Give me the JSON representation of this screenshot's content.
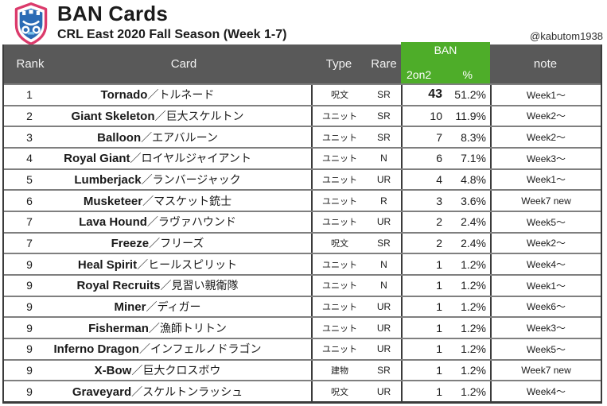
{
  "header": {
    "title": "BAN Cards",
    "subtitle": "CRL East 2020 Fall Season (Week 1-7)",
    "credit": "@kabutom1938"
  },
  "colors": {
    "header_bg": "#595959",
    "header_text": "#f2f2f2",
    "ban_green": "#4ead29",
    "border_gray": "#7f7f7f",
    "border_dark": "#3b3b3b",
    "logo_pink": "#db3a6b",
    "logo_blue": "#2b6bb5",
    "logo_light_blue": "#7ec3ec"
  },
  "table": {
    "separator": "／",
    "columns": {
      "rank": "Rank",
      "card": "Card",
      "type": "Type",
      "rare": "Rare",
      "ban": "BAN",
      "ban_sub_left": "2on2",
      "ban_sub_right": "%",
      "note": "note"
    },
    "rows": [
      {
        "rank": "1",
        "card_en": "Tornado",
        "card_jp": "トルネード",
        "type": "呪文",
        "rare": "SR",
        "count": "43",
        "pct": "51.2%",
        "note": "Week1～",
        "emphasis": true
      },
      {
        "rank": "2",
        "card_en": "Giant Skeleton",
        "card_jp": "巨大スケルトン",
        "type": "ユニット",
        "rare": "SR",
        "count": "10",
        "pct": "11.9%",
        "note": "Week2～",
        "emphasis": false
      },
      {
        "rank": "3",
        "card_en": "Balloon",
        "card_jp": "エアバルーン",
        "type": "ユニット",
        "rare": "SR",
        "count": "7",
        "pct": "8.3%",
        "note": "Week2～",
        "emphasis": false
      },
      {
        "rank": "4",
        "card_en": "Royal Giant",
        "card_jp": "ロイヤルジャイアント",
        "type": "ユニット",
        "rare": "N",
        "count": "6",
        "pct": "7.1%",
        "note": "Week3～",
        "emphasis": false
      },
      {
        "rank": "5",
        "card_en": "Lumberjack",
        "card_jp": "ランバージャック",
        "type": "ユニット",
        "rare": "UR",
        "count": "4",
        "pct": "4.8%",
        "note": "Week1～",
        "emphasis": false
      },
      {
        "rank": "6",
        "card_en": "Musketeer",
        "card_jp": "マスケット銃士",
        "type": "ユニット",
        "rare": "R",
        "count": "3",
        "pct": "3.6%",
        "note": "Week7 new",
        "emphasis": false
      },
      {
        "rank": "7",
        "card_en": "Lava Hound",
        "card_jp": "ラヴァハウンド",
        "type": "ユニット",
        "rare": "UR",
        "count": "2",
        "pct": "2.4%",
        "note": "Week5～",
        "emphasis": false
      },
      {
        "rank": "7",
        "card_en": "Freeze",
        "card_jp": "フリーズ",
        "type": "呪文",
        "rare": "SR",
        "count": "2",
        "pct": "2.4%",
        "note": "Week2～",
        "emphasis": false
      },
      {
        "rank": "9",
        "card_en": "Heal Spirit",
        "card_jp": "ヒールスピリット",
        "type": "ユニット",
        "rare": "N",
        "count": "1",
        "pct": "1.2%",
        "note": "Week4～",
        "emphasis": false
      },
      {
        "rank": "9",
        "card_en": "Royal Recruits",
        "card_jp": "見習い親衛隊",
        "type": "ユニット",
        "rare": "N",
        "count": "1",
        "pct": "1.2%",
        "note": "Week1～",
        "emphasis": false
      },
      {
        "rank": "9",
        "card_en": "Miner",
        "card_jp": "ディガー",
        "type": "ユニット",
        "rare": "UR",
        "count": "1",
        "pct": "1.2%",
        "note": "Week6～",
        "emphasis": false
      },
      {
        "rank": "9",
        "card_en": "Fisherman",
        "card_jp": "漁師トリトン",
        "type": "ユニット",
        "rare": "UR",
        "count": "1",
        "pct": "1.2%",
        "note": "Week3～",
        "emphasis": false
      },
      {
        "rank": "9",
        "card_en": "Inferno Dragon",
        "card_jp": "インフェルノドラゴン",
        "type": "ユニット",
        "rare": "UR",
        "count": "1",
        "pct": "1.2%",
        "note": "Week5～",
        "emphasis": false
      },
      {
        "rank": "9",
        "card_en": "X-Bow",
        "card_jp": "巨大クロスボウ",
        "type": "建物",
        "rare": "SR",
        "count": "1",
        "pct": "1.2%",
        "note": "Week7 new",
        "emphasis": false
      },
      {
        "rank": "9",
        "card_en": "Graveyard",
        "card_jp": "スケルトンラッシュ",
        "type": "呪文",
        "rare": "UR",
        "count": "1",
        "pct": "1.2%",
        "note": "Week4～",
        "emphasis": false
      }
    ]
  }
}
